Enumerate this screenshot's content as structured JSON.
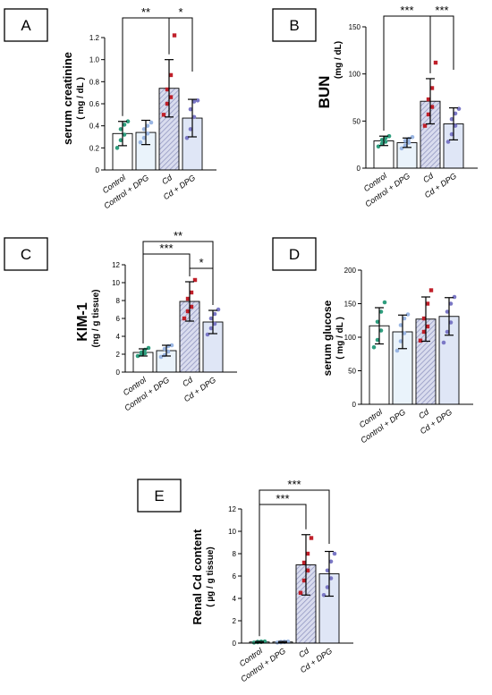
{
  "chart_data": [
    {
      "panel": "A",
      "type": "bar",
      "categories": [
        "Control",
        "Control + DPG",
        "Cd",
        "Cd + DPG"
      ],
      "values": [
        0.33,
        0.34,
        0.74,
        0.47
      ],
      "errors": [
        0.11,
        0.11,
        0.26,
        0.17
      ],
      "points": [
        [
          0.2,
          0.27,
          0.32,
          0.37,
          0.41,
          0.44
        ],
        [
          0.25,
          0.29,
          0.33,
          0.37,
          0.4,
          0.43
        ],
        [
          0.5,
          0.6,
          0.66,
          0.73,
          0.86,
          1.22
        ],
        [
          0.29,
          0.37,
          0.48,
          0.55,
          0.62,
          0.63
        ]
      ],
      "ylabel": "serum creatinine",
      "yunit": "( mg / dL )",
      "ylim": [
        0,
        1.2
      ],
      "yticks": [
        "0",
        "0.2",
        "0.4",
        "0.6",
        "0.8",
        "1.0",
        "1.2"
      ],
      "significance": [
        {
          "from": 0,
          "to": 2,
          "label": "**"
        },
        {
          "from": 2,
          "to": 3,
          "label": "*"
        }
      ]
    },
    {
      "panel": "B",
      "type": "bar",
      "categories": [
        "Control",
        "Control + DPG",
        "Cd",
        "Cd + DPG"
      ],
      "values": [
        29,
        27,
        71,
        47
      ],
      "errors": [
        5,
        5,
        24,
        17
      ],
      "points": [
        [
          23,
          26,
          28,
          30,
          32,
          34
        ],
        [
          21,
          24,
          27,
          29,
          31,
          33
        ],
        [
          45,
          57,
          65,
          73,
          85,
          112
        ],
        [
          28,
          36,
          45,
          52,
          58,
          63
        ]
      ],
      "ylabel": "BUN",
      "yunit": "(mg / dL)",
      "ylim": [
        0,
        150
      ],
      "yticks": [
        "0",
        "50",
        "100",
        "150"
      ],
      "significance": [
        {
          "from": 0,
          "to": 2,
          "label": "***"
        },
        {
          "from": 2,
          "to": 3,
          "label": "***"
        }
      ]
    },
    {
      "panel": "C",
      "type": "bar",
      "categories": [
        "Control",
        "Control + DPG",
        "Cd",
        "Cd + DPG"
      ],
      "values": [
        2.2,
        2.4,
        7.9,
        5.6
      ],
      "errors": [
        0.4,
        0.6,
        2.2,
        1.3
      ],
      "points": [
        [
          1.8,
          2.0,
          2.1,
          2.2,
          2.5,
          2.7
        ],
        [
          1.7,
          1.9,
          2.3,
          2.6,
          2.9,
          3.0
        ],
        [
          6.0,
          6.8,
          7.3,
          8.2,
          8.9,
          10.3
        ],
        [
          4.2,
          4.9,
          5.4,
          6.0,
          6.5,
          7.0
        ]
      ],
      "ylabel": "KIM-1",
      "yunit": "(ng / g tissue)",
      "ylim": [
        0,
        12
      ],
      "yticks": [
        "0",
        "2",
        "4",
        "6",
        "8",
        "10",
        "12"
      ],
      "significance": [
        {
          "from": 0,
          "to": 3,
          "label": "**"
        },
        {
          "from": 0,
          "to": 2,
          "label": "***"
        },
        {
          "from": 2,
          "to": 3,
          "label": "*"
        }
      ]
    },
    {
      "panel": "D",
      "type": "bar",
      "categories": [
        "Control",
        "Control + DPG",
        "Cd",
        "Cd + DPG"
      ],
      "values": [
        117,
        108,
        127,
        131
      ],
      "errors": [
        27,
        25,
        33,
        28
      ],
      "points": [
        [
          85,
          96,
          110,
          123,
          138,
          152
        ],
        [
          80,
          94,
          106,
          118,
          128,
          134
        ],
        [
          95,
          108,
          116,
          128,
          150,
          170
        ],
        [
          92,
          108,
          122,
          138,
          150,
          160
        ]
      ],
      "ylabel": "serum glucose",
      "yunit": "( mg / dL )",
      "ylim": [
        0,
        200
      ],
      "yticks": [
        "0",
        "50",
        "100",
        "150",
        "200"
      ],
      "significance": []
    },
    {
      "panel": "E",
      "type": "bar",
      "categories": [
        "Control",
        "Control + DPG",
        "Cd",
        "Cd + DPG"
      ],
      "values": [
        0.1,
        0.1,
        7.0,
        6.2
      ],
      "errors": [
        0.05,
        0.05,
        2.7,
        2.0
      ],
      "points": [
        [
          0.05,
          0.08,
          0.1,
          0.12,
          0.14,
          0.15
        ],
        [
          0.05,
          0.07,
          0.09,
          0.11,
          0.13,
          0.14
        ],
        [
          4.5,
          5.6,
          6.5,
          7.2,
          8.0,
          9.4
        ],
        [
          4.3,
          5.0,
          5.8,
          6.5,
          7.3,
          8.0
        ]
      ],
      "ylabel": "Renal Cd content",
      "yunit": "( µg / g tissue)",
      "ylim": [
        0,
        12
      ],
      "yticks": [
        "0",
        "2",
        "4",
        "6",
        "8",
        "10",
        "12"
      ],
      "significance": [
        {
          "from": 0,
          "to": 3,
          "label": "***"
        },
        {
          "from": 0,
          "to": 2,
          "label": "***"
        }
      ]
    }
  ],
  "colors": {
    "control_fill": "#ffffff",
    "control_dpg_fill": "#eaf3fb",
    "cd_fill": "#d9dcee",
    "cd_hatch": "#8a8fbd",
    "cd_dpg_fill": "#dfe6f6",
    "control_dot": "#2f9e7e",
    "control_dpg_dot": "#9ab6e3",
    "cd_dot": "#c0202a",
    "cd_dpg_dot": "#7b78c6"
  }
}
